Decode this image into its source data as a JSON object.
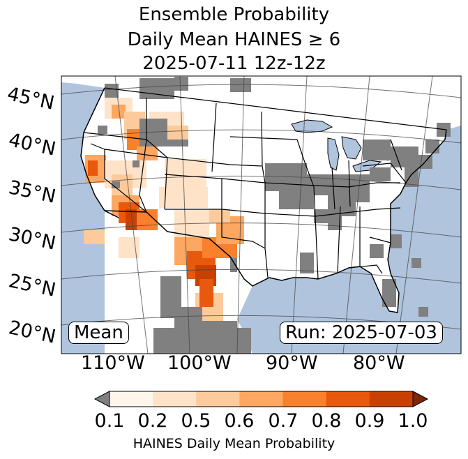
{
  "title": {
    "line1": "Ensemble Probability",
    "line2": "Daily Mean HAINES ≥ 6",
    "line3": "2025-07-11 12z-12z"
  },
  "map": {
    "latitude_labels": [
      "45°N",
      "40°N",
      "35°N",
      "30°N",
      "25°N",
      "20°N"
    ],
    "longitude_labels": [
      "110°W",
      "100°W",
      "90°W",
      "80°W"
    ],
    "mean_label": "Mean",
    "run_label": "Run: 2025-07-03",
    "ocean_color": "#b0c4de",
    "land_color": "#ffffff",
    "missing_color": "#808080"
  },
  "colorbar": {
    "ticks": [
      "0.1",
      "0.2",
      "0.5",
      "0.6",
      "0.7",
      "0.8",
      "0.9",
      "1.0"
    ],
    "label": "HAINES Daily Mean Probability",
    "under_color": "#808080",
    "colors": [
      "#fff5eb",
      "#fee3c8",
      "#fdcb9b",
      "#fda762",
      "#f9802d",
      "#e9590d",
      "#c84102"
    ],
    "over_color": "#7f2704"
  }
}
